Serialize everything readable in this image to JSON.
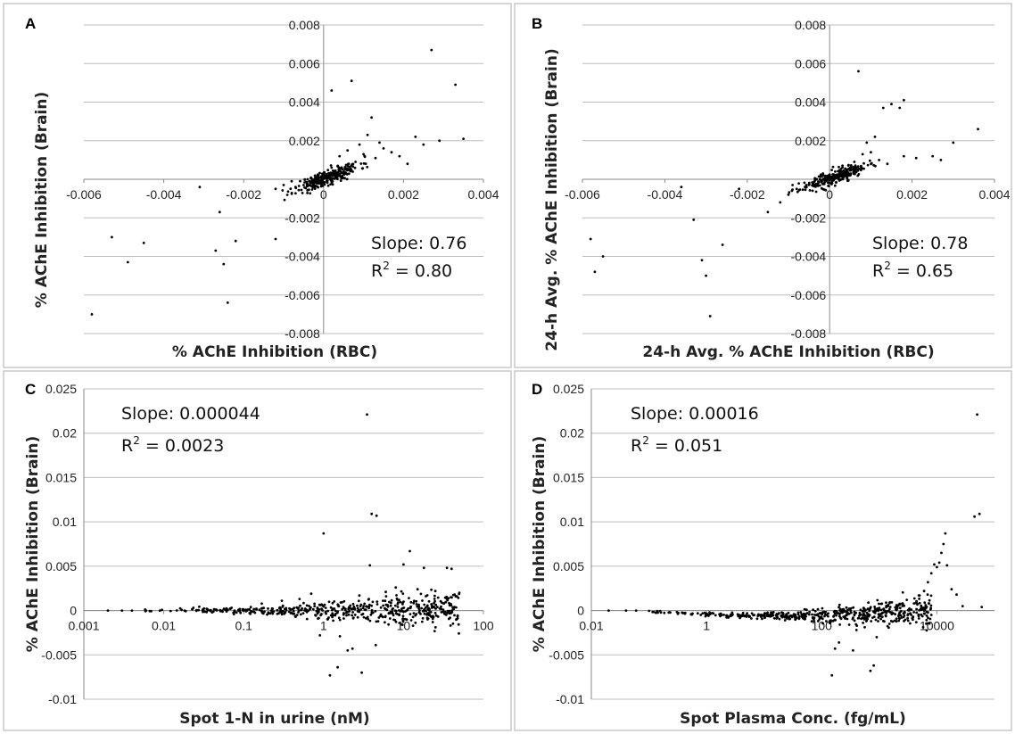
{
  "chart_data": [
    {
      "letter": "A",
      "type": "scatter",
      "ylabel": "% AChE Inhibition (Brain)",
      "xlabel": "% AChE Inhibition (RBC)",
      "annotations": {
        "slope": "Slope: 0.76",
        "r2_prefix": "R",
        "r2_exp": "2",
        "r2_value": " = 0.80"
      },
      "xlim": [
        -0.006,
        0.004
      ],
      "ylim": [
        -0.008,
        0.008
      ],
      "xticks": [
        -0.006,
        -0.004,
        -0.002,
        0,
        0.002,
        0.004
      ],
      "yticks": [
        -0.008,
        -0.006,
        -0.004,
        -0.002,
        0,
        0.002,
        0.004,
        0.006,
        0.008
      ],
      "xtick_labels": [
        "-0.006",
        "-0.004",
        "-0.002",
        "0",
        "0.002",
        "0.004"
      ],
      "ytick_labels": [
        "-0.008",
        "-0.006",
        "-0.004",
        "-0.002",
        "0",
        "0.002",
        "0.004",
        "0.006",
        "0.008"
      ],
      "x_scale": "linear",
      "points": [
        [
          -0.0058,
          -0.007
        ],
        [
          -0.0053,
          -0.003
        ],
        [
          -0.0049,
          -0.0043
        ],
        [
          -0.0045,
          -0.0033
        ],
        [
          -0.0031,
          -0.0004
        ],
        [
          -0.0026,
          -0.0017
        ],
        [
          -0.0027,
          -0.0037
        ],
        [
          -0.0025,
          -0.0044
        ],
        [
          -0.0024,
          -0.0064
        ],
        [
          -0.0022,
          -0.0032
        ],
        [
          -0.0012,
          -0.0031
        ],
        [
          -0.0012,
          -0.0005
        ],
        [
          -0.001,
          -0.0003
        ],
        [
          -0.0008,
          -0.0001
        ],
        [
          0.0002,
          0.0046
        ],
        [
          0.0007,
          0.0051
        ],
        [
          0.0012,
          0.0032
        ],
        [
          0.0027,
          0.0067
        ],
        [
          0.0033,
          0.0049
        ],
        [
          0.0035,
          0.0021
        ],
        [
          0.0029,
          0.002
        ],
        [
          0.0021,
          0.0008
        ],
        [
          0.0023,
          0.0022
        ],
        [
          0.0015,
          0.0016
        ],
        [
          0.0013,
          0.0011
        ],
        [
          0.001,
          0.0013
        ],
        [
          0.0008,
          0.0009
        ],
        [
          0.0017,
          0.0014
        ],
        [
          0.0011,
          0.0023
        ],
        [
          0.0006,
          0.0007
        ],
        [
          0.0004,
          0.0012
        ],
        [
          0.0003,
          0.0003
        ],
        [
          0.0001,
          0.0001
        ],
        [
          -0.0001,
          -0.0002
        ],
        [
          -0.0003,
          -0.0001
        ],
        [
          -0.0005,
          -0.0003
        ],
        [
          -0.0007,
          -0.0004
        ],
        [
          0.0005,
          0.0004
        ],
        [
          0.0002,
          0.0006
        ],
        [
          0.0009,
          0.0018
        ],
        [
          0.0014,
          0.0019
        ],
        [
          0.0019,
          0.0012
        ],
        [
          0.0025,
          0.0018
        ],
        [
          0.0006,
          0.0015
        ],
        [
          -0.0004,
          0.0
        ]
      ],
      "cluster": {
        "cx": 0.0001,
        "cy": 0.0001,
        "sx": 0.0004,
        "sy": 0.00045,
        "n": 260,
        "seed": 11
      }
    },
    {
      "letter": "B",
      "type": "scatter",
      "ylabel": "24-h Avg. % AChE Inhibition (Brain)",
      "xlabel": "24-h Avg. % AChE Inhibition (RBC)",
      "annotations": {
        "slope": "Slope: 0.78",
        "r2_prefix": "R",
        "r2_exp": "2",
        "r2_value": " = 0.65"
      },
      "xlim": [
        -0.006,
        0.004
      ],
      "ylim": [
        -0.008,
        0.008
      ],
      "xticks": [
        -0.006,
        -0.004,
        -0.002,
        0,
        0.002,
        0.004
      ],
      "yticks": [
        -0.008,
        -0.006,
        -0.004,
        -0.002,
        0,
        0.002,
        0.004,
        0.006,
        0.008
      ],
      "xtick_labels": [
        "-0.006",
        "-0.004",
        "-0.002",
        "0",
        "0.002",
        "0.004"
      ],
      "ytick_labels": [
        "-0.008",
        "-0.006",
        "-0.004",
        "-0.002",
        "0",
        "0.002",
        "0.004",
        "0.006",
        "0.008"
      ],
      "x_scale": "linear",
      "points": [
        [
          -0.0058,
          -0.0031
        ],
        [
          -0.0055,
          -0.004
        ],
        [
          -0.0057,
          -0.0048
        ],
        [
          -0.0036,
          -0.0004
        ],
        [
          -0.0033,
          -0.0021
        ],
        [
          -0.003,
          -0.005
        ],
        [
          -0.0031,
          -0.0042
        ],
        [
          -0.0029,
          -0.0071
        ],
        [
          -0.0026,
          -0.0034
        ],
        [
          -0.0022,
          -0.0005
        ],
        [
          -0.0015,
          -0.0017
        ],
        [
          -0.001,
          -0.0008
        ],
        [
          -0.0008,
          -0.0005
        ],
        [
          0.0007,
          0.0056
        ],
        [
          0.0013,
          0.0037
        ],
        [
          0.0015,
          0.0039
        ],
        [
          0.0018,
          0.0041
        ],
        [
          0.0017,
          0.0037
        ],
        [
          0.0011,
          0.0022
        ],
        [
          0.0009,
          0.0019
        ],
        [
          0.0021,
          0.0011
        ],
        [
          0.0025,
          0.0012
        ],
        [
          0.0027,
          0.001
        ],
        [
          0.003,
          0.0019
        ],
        [
          0.0036,
          0.0026
        ],
        [
          0.0018,
          0.0012
        ],
        [
          0.0012,
          0.001
        ],
        [
          0.0008,
          0.0013
        ],
        [
          0.0005,
          0.0006
        ],
        [
          0.0003,
          0.0004
        ],
        [
          -0.0001,
          -0.0001
        ],
        [
          -0.0004,
          -0.0002
        ],
        [
          -0.0006,
          -0.0004
        ],
        [
          0.0001,
          0.0001
        ],
        [
          0.0006,
          0.0009
        ],
        [
          0.001,
          0.0014
        ],
        [
          0.0014,
          0.0008
        ],
        [
          -0.0012,
          -0.0012
        ],
        [
          -0.0009,
          -0.0003
        ],
        [
          0.0004,
          0.0002
        ]
      ],
      "cluster": {
        "cx": 0.0001,
        "cy": 0.0001,
        "sx": 0.0004,
        "sy": 0.0004,
        "n": 240,
        "seed": 23
      }
    },
    {
      "letter": "C",
      "type": "scatter",
      "ylabel": "% AChE Inhibition (Brain)",
      "xlabel": "Spot 1-N in urine (nM)",
      "annotations": {
        "slope": "Slope: 0.000044",
        "r2_prefix": "R",
        "r2_exp": "2",
        "r2_value": " = 0.0023"
      },
      "xlim": [
        0.001,
        100
      ],
      "ylim": [
        -0.01,
        0.025
      ],
      "xticks": [
        0.001,
        0.01,
        0.1,
        1,
        10,
        100
      ],
      "yticks": [
        -0.01,
        -0.005,
        0,
        0.005,
        0.01,
        0.015,
        0.02,
        0.025
      ],
      "xtick_labels": [
        "0.001",
        "0.01",
        "0.1",
        "1",
        "10",
        "100"
      ],
      "ytick_labels": [
        "-0.01",
        "-0.005",
        "0",
        "0.005",
        "0.01",
        "0.015",
        "0.02",
        "0.025"
      ],
      "x_scale": "log",
      "points": [
        [
          3.5,
          0.0221
        ],
        [
          4.0,
          0.0109
        ],
        [
          4.6,
          0.0107
        ],
        [
          1.0,
          0.0087
        ],
        [
          12.0,
          0.0067
        ],
        [
          18.0,
          0.0048
        ],
        [
          35.0,
          0.0048
        ],
        [
          40.0,
          0.0047
        ],
        [
          10.0,
          0.0052
        ],
        [
          3.8,
          0.0051
        ],
        [
          1.2,
          -0.0073
        ],
        [
          1.5,
          -0.0064
        ],
        [
          3.0,
          -0.007
        ],
        [
          2.0,
          -0.0045
        ],
        [
          2.3,
          -0.0043
        ],
        [
          4.5,
          -0.0039
        ],
        [
          0.9,
          -0.0028
        ],
        [
          1.6,
          -0.0029
        ],
        [
          8.0,
          0.0026
        ],
        [
          15.0,
          0.0024
        ],
        [
          25.0,
          0.0022
        ],
        [
          50.0,
          0.002
        ],
        [
          45.0,
          0.0016
        ],
        [
          0.7,
          0.0019
        ],
        [
          0.5,
          0.0013
        ],
        [
          0.3,
          0.0011
        ],
        [
          6.0,
          0.0021
        ],
        [
          2.8,
          0.0017
        ],
        [
          0.002,
          0.0
        ],
        [
          0.003,
          0.0
        ],
        [
          0.004,
          0.0
        ],
        [
          0.006,
          0.0
        ],
        [
          20.0,
          -0.001
        ],
        [
          9.0,
          -0.0014
        ],
        [
          30.0,
          0.0009
        ]
      ],
      "band": {
        "xmin": 0.004,
        "xmax": 50,
        "n": 520,
        "seed": 37,
        "spread_min": 0.0001,
        "spread_max": 0.0011
      }
    },
    {
      "letter": "D",
      "type": "scatter",
      "ylabel": "% AChE Inhibition (Brain)",
      "xlabel": "Spot Plasma Conc. (fg/mL)",
      "annotations": {
        "slope": "Slope: 0.00016",
        "r2_prefix": "R",
        "r2_exp": "2",
        "r2_value": " = 0.051"
      },
      "xlim": [
        0.01,
        100000
      ],
      "ylim": [
        -0.01,
        0.025
      ],
      "xticks": [
        0.01,
        1,
        100,
        10000
      ],
      "yticks": [
        -0.01,
        -0.005,
        0,
        0.005,
        0.01,
        0.015,
        0.02,
        0.025
      ],
      "xtick_labels": [
        "0.01",
        "1",
        "100",
        "10000"
      ],
      "ytick_labels": [
        "-0.01",
        "-0.005",
        "0",
        "0.005",
        "0.01",
        "0.015",
        "0.02",
        "0.025"
      ],
      "x_scale": "log",
      "points": [
        [
          50000,
          0.0221
        ],
        [
          55000,
          0.0109
        ],
        [
          45000,
          0.0106
        ],
        [
          14000,
          0.0087
        ],
        [
          13000,
          0.0075
        ],
        [
          12000,
          0.0065
        ],
        [
          11000,
          0.0054
        ],
        [
          9000,
          0.0052
        ],
        [
          10000,
          0.0049
        ],
        [
          15000,
          0.0051
        ],
        [
          8000,
          0.0042
        ],
        [
          7000,
          0.0032
        ],
        [
          18000,
          0.0024
        ],
        [
          22000,
          0.0018
        ],
        [
          6000,
          0.0022
        ],
        [
          5000,
          0.0017
        ],
        [
          28000,
          0.0005
        ],
        [
          60000,
          0.0004
        ],
        [
          150,
          -0.0073
        ],
        [
          170,
          -0.0043
        ],
        [
          200,
          -0.0036
        ],
        [
          350,
          -0.0045
        ],
        [
          700,
          -0.0068
        ],
        [
          800,
          -0.0062
        ],
        [
          400,
          -0.0022
        ],
        [
          900,
          -0.003
        ],
        [
          1500,
          -0.0015
        ],
        [
          0.02,
          0.0
        ],
        [
          0.04,
          0.0
        ],
        [
          0.06,
          0.0
        ],
        [
          3000,
          0.0012
        ],
        [
          4000,
          0.0008
        ],
        [
          2000,
          0.0006
        ],
        [
          120,
          -0.0012
        ],
        [
          300,
          -0.0016
        ]
      ],
      "band": {
        "xmin": 0.05,
        "xmax": 8000,
        "n": 520,
        "seed": 53,
        "spread_min": 5e-05,
        "spread_max": 0.0009,
        "curve": true
      }
    }
  ]
}
